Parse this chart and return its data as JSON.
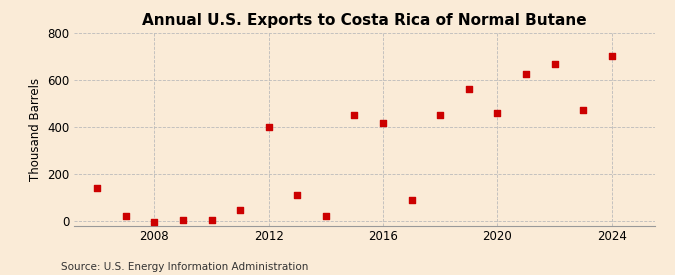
{
  "title": "Annual U.S. Exports to Costa Rica of Normal Butane",
  "ylabel": "Thousand Barrels",
  "source": "Source: U.S. Energy Information Administration",
  "background_color": "#faebd7",
  "years": [
    2006,
    2007,
    2008,
    2009,
    2010,
    2011,
    2012,
    2013,
    2014,
    2015,
    2016,
    2017,
    2018,
    2019,
    2020,
    2021,
    2022,
    2023,
    2024
  ],
  "values": [
    140,
    20,
    -5,
    5,
    5,
    45,
    400,
    110,
    20,
    450,
    415,
    90,
    450,
    560,
    460,
    625,
    670,
    470,
    700
  ],
  "marker_color": "#cc0000",
  "marker_size": 25,
  "ylim": [
    -20,
    800
  ],
  "yticks": [
    0,
    200,
    400,
    600,
    800
  ],
  "xlim": [
    2005.2,
    2025.5
  ],
  "xticks": [
    2008,
    2012,
    2016,
    2020,
    2024
  ],
  "grid_color": "#bbbbbb",
  "grid_linestyle": "--",
  "title_fontsize": 11,
  "ylabel_fontsize": 8.5,
  "tick_fontsize": 8.5,
  "source_fontsize": 7.5
}
